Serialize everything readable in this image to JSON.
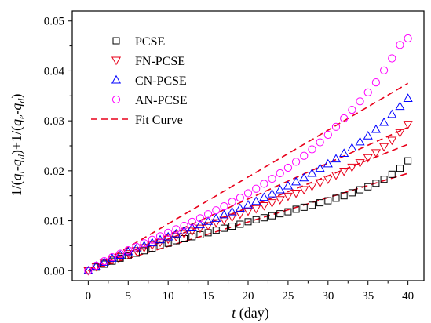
{
  "chart_data": {
    "type": "scatter",
    "xlabel": {
      "var": "t",
      "unit": " (day)"
    },
    "ylabel": "1/(q_t-q_d)+1/(q_e-q_d)",
    "xlim": [
      -2,
      42
    ],
    "ylim": [
      -0.002,
      0.052
    ],
    "xticks": [
      0,
      5,
      10,
      15,
      20,
      25,
      30,
      35,
      40
    ],
    "yticks": [
      0.0,
      0.01,
      0.02,
      0.03,
      0.04,
      0.05
    ],
    "ytick_labels": [
      "0.00",
      "0.01",
      "0.02",
      "0.03",
      "0.04",
      "0.05"
    ],
    "legend_position": "top-left",
    "x": [
      0,
      1,
      2,
      3,
      4,
      5,
      6,
      7,
      8,
      9,
      10,
      11,
      12,
      13,
      14,
      15,
      16,
      17,
      18,
      19,
      20,
      21,
      22,
      23,
      24,
      25,
      26,
      27,
      28,
      29,
      30,
      31,
      32,
      33,
      34,
      35,
      36,
      37,
      38,
      39,
      40
    ],
    "series": [
      {
        "name": "PCSE",
        "marker": "square",
        "color": "#000000",
        "values": [
          0.0,
          0.0007,
          0.0013,
          0.0019,
          0.0025,
          0.003,
          0.0035,
          0.004,
          0.0045,
          0.005,
          0.0055,
          0.006,
          0.0064,
          0.0068,
          0.0072,
          0.0076,
          0.0081,
          0.0085,
          0.0089,
          0.0093,
          0.0098,
          0.0102,
          0.0106,
          0.011,
          0.0114,
          0.0118,
          0.0123,
          0.0127,
          0.0131,
          0.0136,
          0.014,
          0.0145,
          0.015,
          0.0156,
          0.0162,
          0.0168,
          0.0175,
          0.0183,
          0.0193,
          0.0205,
          0.022
        ]
      },
      {
        "name": "FN-PCSE",
        "marker": "triangle-down",
        "color": "#e8001a",
        "values": [
          0.0,
          0.0008,
          0.0015,
          0.0022,
          0.0028,
          0.0034,
          0.004,
          0.0046,
          0.0051,
          0.0057,
          0.0063,
          0.0068,
          0.0074,
          0.0079,
          0.0085,
          0.009,
          0.0096,
          0.0101,
          0.0107,
          0.0113,
          0.0119,
          0.0124,
          0.013,
          0.0136,
          0.0142,
          0.0149,
          0.0155,
          0.0162,
          0.0169,
          0.0176,
          0.0183,
          0.0191,
          0.0199,
          0.0207,
          0.0216,
          0.0226,
          0.0236,
          0.0248,
          0.0261,
          0.0276,
          0.0293
        ]
      },
      {
        "name": "CN-PCSE",
        "marker": "triangle-up",
        "color": "#0000ff",
        "values": [
          0.0,
          0.0009,
          0.0017,
          0.0025,
          0.0031,
          0.0038,
          0.0044,
          0.005,
          0.0056,
          0.0062,
          0.0068,
          0.0074,
          0.008,
          0.0086,
          0.0092,
          0.0099,
          0.0105,
          0.0112,
          0.0118,
          0.0125,
          0.0132,
          0.0139,
          0.0147,
          0.0154,
          0.0162,
          0.017,
          0.0178,
          0.0186,
          0.0195,
          0.0205,
          0.0214,
          0.0224,
          0.0235,
          0.0246,
          0.0258,
          0.027,
          0.0283,
          0.0297,
          0.0313,
          0.0329,
          0.0345
        ]
      },
      {
        "name": "AN-PCSE",
        "marker": "circle",
        "color": "#ff00ff",
        "values": [
          0.0,
          0.001,
          0.0019,
          0.0027,
          0.0034,
          0.0041,
          0.0048,
          0.0055,
          0.0062,
          0.0069,
          0.0076,
          0.0083,
          0.009,
          0.0098,
          0.0105,
          0.0113,
          0.0121,
          0.0129,
          0.0138,
          0.0146,
          0.0155,
          0.0164,
          0.0174,
          0.0184,
          0.0195,
          0.0206,
          0.0218,
          0.023,
          0.0243,
          0.0257,
          0.0272,
          0.0288,
          0.0305,
          0.0322,
          0.0339,
          0.0357,
          0.0377,
          0.0401,
          0.0425,
          0.0452,
          0.0465
        ]
      }
    ],
    "fit_curve": {
      "name": "Fit Curve",
      "color": "#e8001a",
      "style": "dashed",
      "lines": [
        {
          "x": [
            0,
            40
          ],
          "y": [
            0.0,
            0.0195
          ]
        },
        {
          "x": [
            0,
            40
          ],
          "y": [
            0.0,
            0.0253
          ]
        },
        {
          "x": [
            0,
            40
          ],
          "y": [
            0.0,
            0.0287
          ]
        },
        {
          "x": [
            0,
            40
          ],
          "y": [
            0.0,
            0.0375
          ]
        }
      ]
    }
  }
}
